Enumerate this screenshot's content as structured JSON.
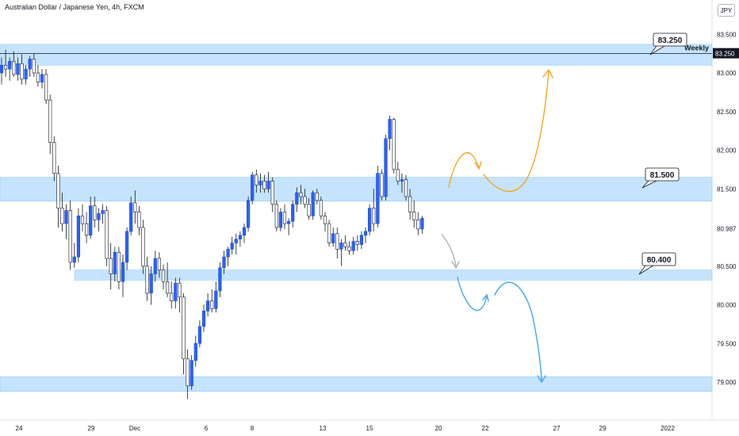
{
  "header": {
    "title": "Australian Dollar / Japanese Yen, 4h, FXCM",
    "currency": "JPY"
  },
  "chart_data": {
    "type": "candlestick",
    "symbol": "AUDJPY",
    "timeframe": "4h",
    "x_ticks": [
      "24",
      "29",
      "Dec",
      "6",
      "8",
      "13",
      "15",
      "20",
      "22",
      "27",
      "29",
      "2022"
    ],
    "y_ticks": [
      83.5,
      83.0,
      82.5,
      82.0,
      81.5,
      80.987,
      80.5,
      80.0,
      79.5,
      79.0
    ],
    "ylim": [
      78.5,
      83.8
    ],
    "price_labels": [
      {
        "value": 83.25,
        "text": "83.250",
        "color": "#131722"
      }
    ],
    "horizontal_line": {
      "value": 83.25,
      "label": "Weekly"
    },
    "zones": [
      {
        "top": 83.37,
        "bottom": 83.1
      },
      {
        "top": 81.65,
        "bottom": 81.34
      },
      {
        "top": 80.45,
        "bottom": 80.32
      },
      {
        "top": 79.07,
        "bottom": 78.88
      }
    ],
    "callouts": [
      {
        "text": "83.250",
        "value": 83.25
      },
      {
        "text": "81.500",
        "value": 81.5
      },
      {
        "text": "80.400",
        "value": 80.4
      }
    ],
    "candles": [
      [
        83.0,
        83.2,
        82.85,
        83.1
      ],
      [
        83.1,
        83.3,
        82.95,
        83.05
      ],
      [
        83.05,
        83.2,
        82.9,
        83.15
      ],
      [
        83.15,
        83.28,
        82.95,
        82.98
      ],
      [
        82.98,
        83.2,
        82.9,
        83.12
      ],
      [
        83.12,
        83.24,
        82.85,
        82.92
      ],
      [
        82.92,
        83.1,
        82.85,
        83.05
      ],
      [
        83.05,
        83.22,
        82.95,
        83.18
      ],
      [
        83.18,
        83.25,
        82.95,
        83.0
      ],
      [
        83.0,
        83.1,
        82.82,
        82.88
      ],
      [
        82.88,
        83.05,
        82.8,
        82.98
      ],
      [
        82.98,
        83.05,
        82.6,
        82.65
      ],
      [
        82.65,
        82.72,
        81.95,
        82.1
      ],
      [
        82.1,
        82.18,
        81.6,
        81.7
      ],
      [
        81.7,
        81.8,
        81.0,
        81.25
      ],
      [
        81.25,
        81.45,
        80.95,
        81.05
      ],
      [
        81.05,
        81.3,
        80.85,
        81.22
      ],
      [
        81.22,
        81.35,
        80.45,
        80.55
      ],
      [
        80.55,
        80.8,
        80.48,
        80.62
      ],
      [
        80.62,
        81.25,
        80.55,
        81.15
      ],
      [
        81.15,
        81.3,
        80.95,
        81.05
      ],
      [
        81.05,
        81.2,
        80.8,
        80.9
      ],
      [
        80.9,
        81.4,
        80.85,
        81.28
      ],
      [
        81.28,
        81.4,
        81.0,
        81.1
      ],
      [
        81.1,
        81.25,
        80.95,
        81.18
      ],
      [
        81.18,
        81.3,
        81.05,
        81.22
      ],
      [
        81.22,
        81.28,
        80.5,
        80.6
      ],
      [
        80.6,
        80.8,
        80.2,
        80.4
      ],
      [
        80.4,
        80.75,
        80.3,
        80.68
      ],
      [
        80.68,
        80.75,
        80.2,
        80.3
      ],
      [
        80.3,
        80.65,
        80.1,
        80.55
      ],
      [
        80.55,
        81.0,
        80.45,
        80.95
      ],
      [
        80.95,
        81.4,
        80.9,
        81.32
      ],
      [
        81.32,
        81.48,
        81.05,
        81.2
      ],
      [
        81.2,
        81.28,
        80.9,
        81.0
      ],
      [
        81.0,
        81.1,
        80.4,
        80.5
      ],
      [
        80.5,
        80.62,
        80.05,
        80.15
      ],
      [
        80.15,
        80.5,
        80.0,
        80.4
      ],
      [
        80.4,
        80.7,
        80.3,
        80.6
      ],
      [
        80.6,
        80.68,
        80.35,
        80.45
      ],
      [
        80.45,
        80.52,
        80.2,
        80.3
      ],
      [
        80.3,
        80.55,
        80.1,
        80.15
      ],
      [
        80.15,
        80.3,
        79.95,
        80.05
      ],
      [
        80.05,
        80.35,
        79.95,
        80.28
      ],
      [
        80.28,
        80.35,
        79.9,
        80.1
      ],
      [
        80.1,
        80.15,
        79.1,
        79.3
      ],
      [
        79.3,
        79.42,
        78.78,
        78.95
      ],
      [
        78.95,
        79.35,
        78.9,
        79.28
      ],
      [
        79.28,
        79.6,
        79.2,
        79.5
      ],
      [
        79.5,
        79.8,
        79.45,
        79.72
      ],
      [
        79.72,
        80.0,
        79.65,
        79.92
      ],
      [
        79.92,
        80.15,
        79.85,
        80.05
      ],
      [
        80.05,
        80.2,
        79.9,
        79.95
      ],
      [
        79.95,
        80.3,
        79.9,
        80.18
      ],
      [
        80.18,
        80.55,
        80.1,
        80.48
      ],
      [
        80.48,
        80.7,
        80.4,
        80.62
      ],
      [
        80.62,
        80.75,
        80.5,
        80.72
      ],
      [
        80.72,
        80.88,
        80.65,
        80.8
      ],
      [
        80.8,
        80.92,
        80.65,
        80.85
      ],
      [
        80.85,
        80.95,
        80.75,
        80.9
      ],
      [
        80.9,
        81.05,
        80.8,
        81.0
      ],
      [
        81.0,
        81.4,
        80.95,
        81.35
      ],
      [
        81.35,
        81.72,
        81.3,
        81.68
      ],
      [
        81.68,
        81.75,
        81.45,
        81.55
      ],
      [
        81.55,
        81.7,
        81.45,
        81.6
      ],
      [
        81.6,
        81.68,
        81.45,
        81.5
      ],
      [
        81.5,
        81.72,
        81.45,
        81.6
      ],
      [
        81.6,
        81.65,
        81.2,
        81.3
      ],
      [
        81.3,
        81.35,
        80.95,
        81.0
      ],
      [
        81.0,
        81.25,
        80.95,
        81.2
      ],
      [
        81.2,
        81.3,
        80.98,
        81.05
      ],
      [
        81.05,
        81.12,
        80.9,
        81.08
      ],
      [
        81.08,
        81.35,
        81.0,
        81.3
      ],
      [
        81.3,
        81.52,
        81.2,
        81.45
      ],
      [
        81.45,
        81.55,
        81.3,
        81.4
      ],
      [
        81.4,
        81.5,
        81.25,
        81.3
      ],
      [
        81.3,
        81.38,
        81.1,
        81.15
      ],
      [
        81.15,
        81.48,
        81.1,
        81.45
      ],
      [
        81.45,
        81.5,
        81.3,
        81.35
      ],
      [
        81.35,
        81.4,
        81.1,
        81.15
      ],
      [
        81.15,
        81.2,
        80.95,
        81.05
      ],
      [
        81.05,
        81.1,
        80.75,
        80.8
      ],
      [
        80.8,
        81.0,
        80.75,
        80.92
      ],
      [
        80.92,
        81.0,
        80.6,
        80.72
      ],
      [
        80.72,
        80.85,
        80.5,
        80.8
      ],
      [
        80.8,
        80.9,
        80.7,
        80.75
      ],
      [
        80.75,
        80.82,
        80.65,
        80.7
      ],
      [
        80.7,
        80.88,
        80.65,
        80.82
      ],
      [
        80.82,
        80.9,
        80.7,
        80.78
      ],
      [
        80.78,
        80.95,
        80.72,
        80.9
      ],
      [
        80.9,
        81.0,
        80.8,
        80.95
      ],
      [
        80.95,
        81.3,
        80.9,
        81.25
      ],
      [
        81.25,
        81.5,
        80.95,
        81.05
      ],
      [
        81.05,
        81.8,
        81.0,
        81.7
      ],
      [
        81.7,
        81.75,
        81.35,
        81.4
      ],
      [
        81.4,
        82.2,
        81.35,
        82.15
      ],
      [
        82.15,
        82.45,
        82.0,
        82.4
      ],
      [
        82.4,
        82.42,
        81.7,
        81.75
      ],
      [
        81.75,
        81.85,
        81.55,
        81.6
      ],
      [
        81.6,
        81.7,
        81.45,
        81.62
      ],
      [
        81.62,
        81.68,
        81.35,
        81.4
      ],
      [
        81.4,
        81.5,
        81.1,
        81.2
      ],
      [
        81.2,
        81.35,
        81.0,
        81.1
      ],
      [
        81.1,
        81.2,
        80.9,
        80.98
      ],
      [
        80.98,
        81.15,
        80.92,
        81.12
      ]
    ],
    "colors": {
      "up": "#2962ff",
      "down": "#ffffff",
      "zone": "#bbdefb",
      "zone_edge": "#90caf9",
      "orange": "#f5a623",
      "grey": "#b0b3ba",
      "blue": "#42a5f5"
    }
  }
}
